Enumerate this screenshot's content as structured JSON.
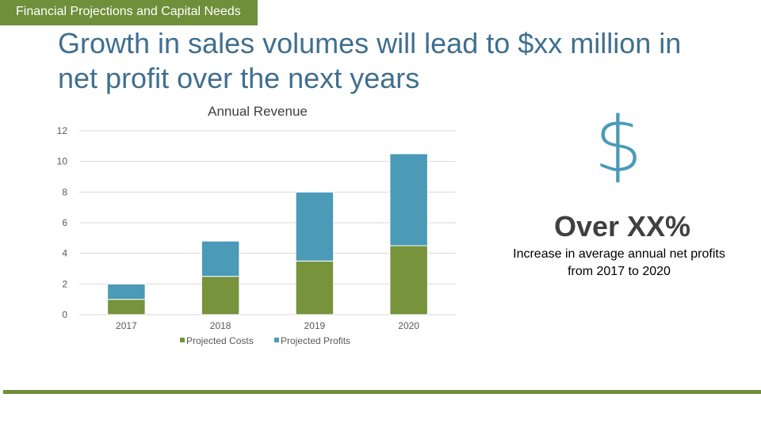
{
  "section_tab": {
    "label": "Financial Projections and Capital Needs"
  },
  "headline": "Growth in sales volumes will lead to $xx million in net profit over the next years",
  "stat": {
    "symbol": "$",
    "headline": "Over XX%",
    "description": "Increase in average annual net profits from 2017 to 2020"
  },
  "colors": {
    "accent_green": "#6f8f3a",
    "cost_bar": "#77933c",
    "profit_bar": "#4a9ab8",
    "headline_blue": "#3f6f8f",
    "gridline": "#d9d9d9"
  },
  "chart_data": {
    "type": "bar",
    "stacked": true,
    "title": "Annual Revenue",
    "categories": [
      "2017",
      "2018",
      "2019",
      "2020"
    ],
    "series": [
      {
        "name": "Projected Costs",
        "values": [
          1,
          2.5,
          3.5,
          4.5
        ],
        "color": "#77933c"
      },
      {
        "name": "Projected Profits",
        "values": [
          1,
          2.3,
          4.5,
          6
        ],
        "color": "#4a9ab8"
      }
    ],
    "ylim": [
      0,
      12
    ],
    "yticks": [
      "0",
      "2",
      "4",
      "6",
      "8",
      "10",
      "12"
    ],
    "xlabel": "",
    "ylabel": "",
    "grid": true,
    "legend_position": "bottom"
  }
}
